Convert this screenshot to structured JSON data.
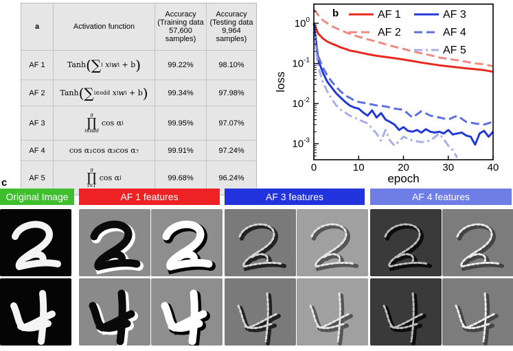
{
  "panel_a": {
    "letter": "a",
    "headers": [
      "Activation function",
      "Accuracy\n(Training data\n57,600\nsamples)",
      "Accuracy\n(Testing data\n9,964\nsamples)"
    ],
    "rows": [
      {
        "name": "AF 1",
        "train": "99.22%",
        "test": "98.10%"
      },
      {
        "name": "AF 2",
        "train": "99.34%",
        "test": "97.98%"
      },
      {
        "name": "AF 3",
        "train": "99.95%",
        "test": "97.07%"
      },
      {
        "name": "AF 4",
        "train": "99.91%",
        "test": "97.24%"
      },
      {
        "name": "AF 5",
        "train": "99.68%",
        "test": "96.24%"
      }
    ],
    "formulas": {
      "af1": {
        "fn": "Tanh",
        "sum_sub": "i",
        "body": "x",
        "w": "w",
        "b": "+ b"
      },
      "af2": {
        "fn": "Tanh",
        "sum_sub": "i∈odd",
        "b": "+ b"
      },
      "af3": {
        "prod_top": "9",
        "prod_sub": "i∈odd",
        "body": "cos α"
      },
      "af4": {
        "text": "cos α₁cos α₃cos α₇"
      },
      "af5": {
        "prod_top": "9",
        "prod_sub": "i=1",
        "body": "cos α"
      }
    }
  },
  "chart_data": {
    "type": "line",
    "panel_letter": "b",
    "xlabel": "epoch",
    "ylabel": "loss",
    "xlim": [
      0,
      40
    ],
    "ylim": [
      0.0004,
      3
    ],
    "yscale": "log",
    "xticks": [
      0,
      10,
      20,
      30,
      40
    ],
    "yticks": [
      "10^0",
      "10^-1",
      "10^-2",
      "10^-3"
    ],
    "legend_position": "top-right",
    "series": [
      {
        "name": "AF 1",
        "color": "#e8281e",
        "dash": "solid",
        "x": [
          0,
          1,
          2,
          3,
          4,
          5,
          6,
          7,
          8,
          9,
          10,
          12,
          14,
          16,
          18,
          20,
          22,
          24,
          26,
          28,
          30,
          32,
          34,
          36,
          38,
          40
        ],
        "y": [
          1.0,
          0.55,
          0.42,
          0.35,
          0.31,
          0.28,
          0.25,
          0.23,
          0.21,
          0.2,
          0.19,
          0.17,
          0.155,
          0.145,
          0.135,
          0.125,
          0.115,
          0.105,
          0.097,
          0.09,
          0.085,
          0.08,
          0.075,
          0.072,
          0.068,
          0.062
        ]
      },
      {
        "name": "AF 2",
        "color": "#f08a80",
        "dash": "dashed",
        "x": [
          0,
          1,
          2,
          3,
          4,
          5,
          6,
          7,
          8,
          9,
          10,
          12,
          14,
          16,
          18,
          20,
          22,
          24,
          26,
          28,
          30,
          32,
          34,
          36,
          38,
          40
        ],
        "y": [
          2.2,
          1.6,
          1.2,
          1.0,
          0.85,
          0.75,
          0.68,
          0.6,
          0.55,
          0.5,
          0.46,
          0.4,
          0.35,
          0.3,
          0.26,
          0.23,
          0.2,
          0.18,
          0.16,
          0.14,
          0.13,
          0.12,
          0.11,
          0.1,
          0.095,
          0.085
        ]
      },
      {
        "name": "AF 3",
        "color": "#2339d6",
        "dash": "solid",
        "x": [
          0,
          1,
          2,
          3,
          4,
          5,
          6,
          7,
          8,
          9,
          10,
          11,
          12,
          13,
          14,
          15,
          16,
          17,
          18,
          19,
          20,
          21,
          22,
          23,
          24,
          25,
          26,
          27,
          28,
          29,
          30,
          31,
          32,
          33,
          34,
          35,
          36,
          37,
          38,
          39,
          40
        ],
        "y": [
          1.0,
          0.12,
          0.06,
          0.035,
          0.025,
          0.018,
          0.014,
          0.011,
          0.009,
          0.008,
          0.0075,
          0.006,
          0.005,
          0.0068,
          0.0045,
          0.0058,
          0.004,
          0.0035,
          0.003,
          0.0022,
          0.0026,
          0.0021,
          0.002,
          0.0022,
          0.0019,
          0.0023,
          0.002,
          0.0019,
          0.002,
          0.0018,
          0.0022,
          0.0017,
          0.0018,
          0.0019,
          0.0016,
          0.0015,
          0.00095,
          0.0018,
          0.0021,
          0.0015,
          0.002
        ]
      },
      {
        "name": "AF 4",
        "color": "#5c6ee2",
        "dash": "dashed",
        "x": [
          0,
          1,
          2,
          3,
          4,
          5,
          6,
          7,
          8,
          9,
          10,
          12,
          14,
          16,
          18,
          20,
          22,
          24,
          26,
          28,
          30,
          32,
          34,
          36,
          38,
          40
        ],
        "y": [
          0.6,
          0.15,
          0.08,
          0.05,
          0.035,
          0.026,
          0.02,
          0.016,
          0.014,
          0.012,
          0.011,
          0.01,
          0.009,
          0.0085,
          0.0075,
          0.007,
          0.0045,
          0.0065,
          0.005,
          0.0045,
          0.004,
          0.005,
          0.0035,
          0.0032,
          0.003,
          0.0035
        ]
      },
      {
        "name": "AF 5",
        "color": "#a7aee8",
        "dash": "dashdot",
        "x": [
          0,
          1,
          2,
          3,
          4,
          5,
          6,
          7,
          8,
          9,
          10,
          12,
          14,
          15,
          16,
          17,
          18,
          20,
          22,
          24,
          26,
          28,
          30,
          31,
          32
        ],
        "y": [
          0.5,
          0.08,
          0.035,
          0.02,
          0.013,
          0.009,
          0.007,
          0.006,
          0.005,
          0.0045,
          0.004,
          0.0032,
          0.0018,
          0.0012,
          0.0022,
          0.0012,
          0.0009,
          0.0015,
          0.0012,
          0.0011,
          0.0012,
          0.0018,
          0.0009,
          0.0007,
          0.00045
        ]
      }
    ]
  },
  "panel_c": {
    "letter": "c",
    "banners": [
      {
        "label": "Original Image",
        "color": "#3dbf2e"
      },
      {
        "label": "AF 1 features",
        "color": "#ee2222"
      },
      {
        "label": "AF 3 features",
        "color": "#2233dd"
      },
      {
        "label": "AF 4 features",
        "color": "#6f7ee6"
      }
    ],
    "tile_backgrounds": [
      "#050505",
      "#8a8a8a",
      "#8e8e8e",
      "#7a7a7a",
      "#a0a0a0",
      "#3a3a3a",
      "#7c7c7c"
    ],
    "digits": [
      "2",
      "4"
    ]
  }
}
